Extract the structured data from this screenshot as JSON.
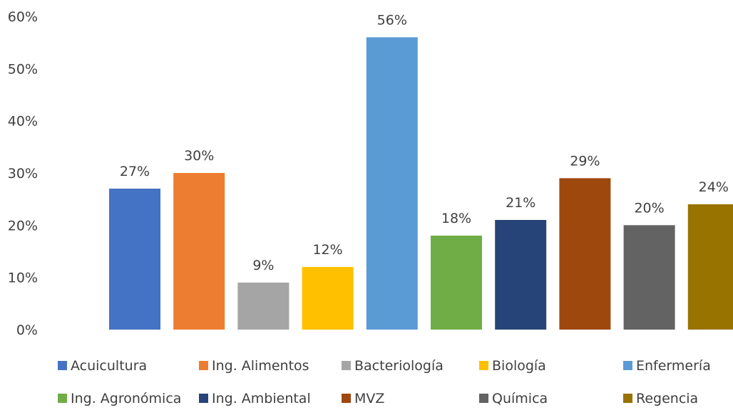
{
  "chart_data": {
    "type": "bar",
    "title": "",
    "xlabel": "",
    "ylabel": "",
    "ylim": [
      0,
      60
    ],
    "yticks": [
      "0%",
      "10%",
      "20%",
      "30%",
      "40%",
      "50%",
      "60%"
    ],
    "grid": false,
    "legend_position": "bottom",
    "categories": [
      "Acuicultura",
      "Ing. Alimentos",
      "Bacteriología",
      "Biología",
      "Enfermería",
      "Ing. Agronómica",
      "Ing. Ambiental",
      "MVZ",
      "Química",
      "Regencia"
    ],
    "values": [
      27,
      30,
      9,
      12,
      56,
      18,
      21,
      29,
      20,
      24
    ],
    "value_labels": [
      "27%",
      "30%",
      "9%",
      "12%",
      "56%",
      "18%",
      "21%",
      "29%",
      "20%",
      "24%"
    ],
    "colors": [
      "#4472C4",
      "#ED7D31",
      "#A5A5A5",
      "#FFC000",
      "#5B9BD5",
      "#70AD47",
      "#264478",
      "#9E480E",
      "#636363",
      "#997300"
    ]
  }
}
